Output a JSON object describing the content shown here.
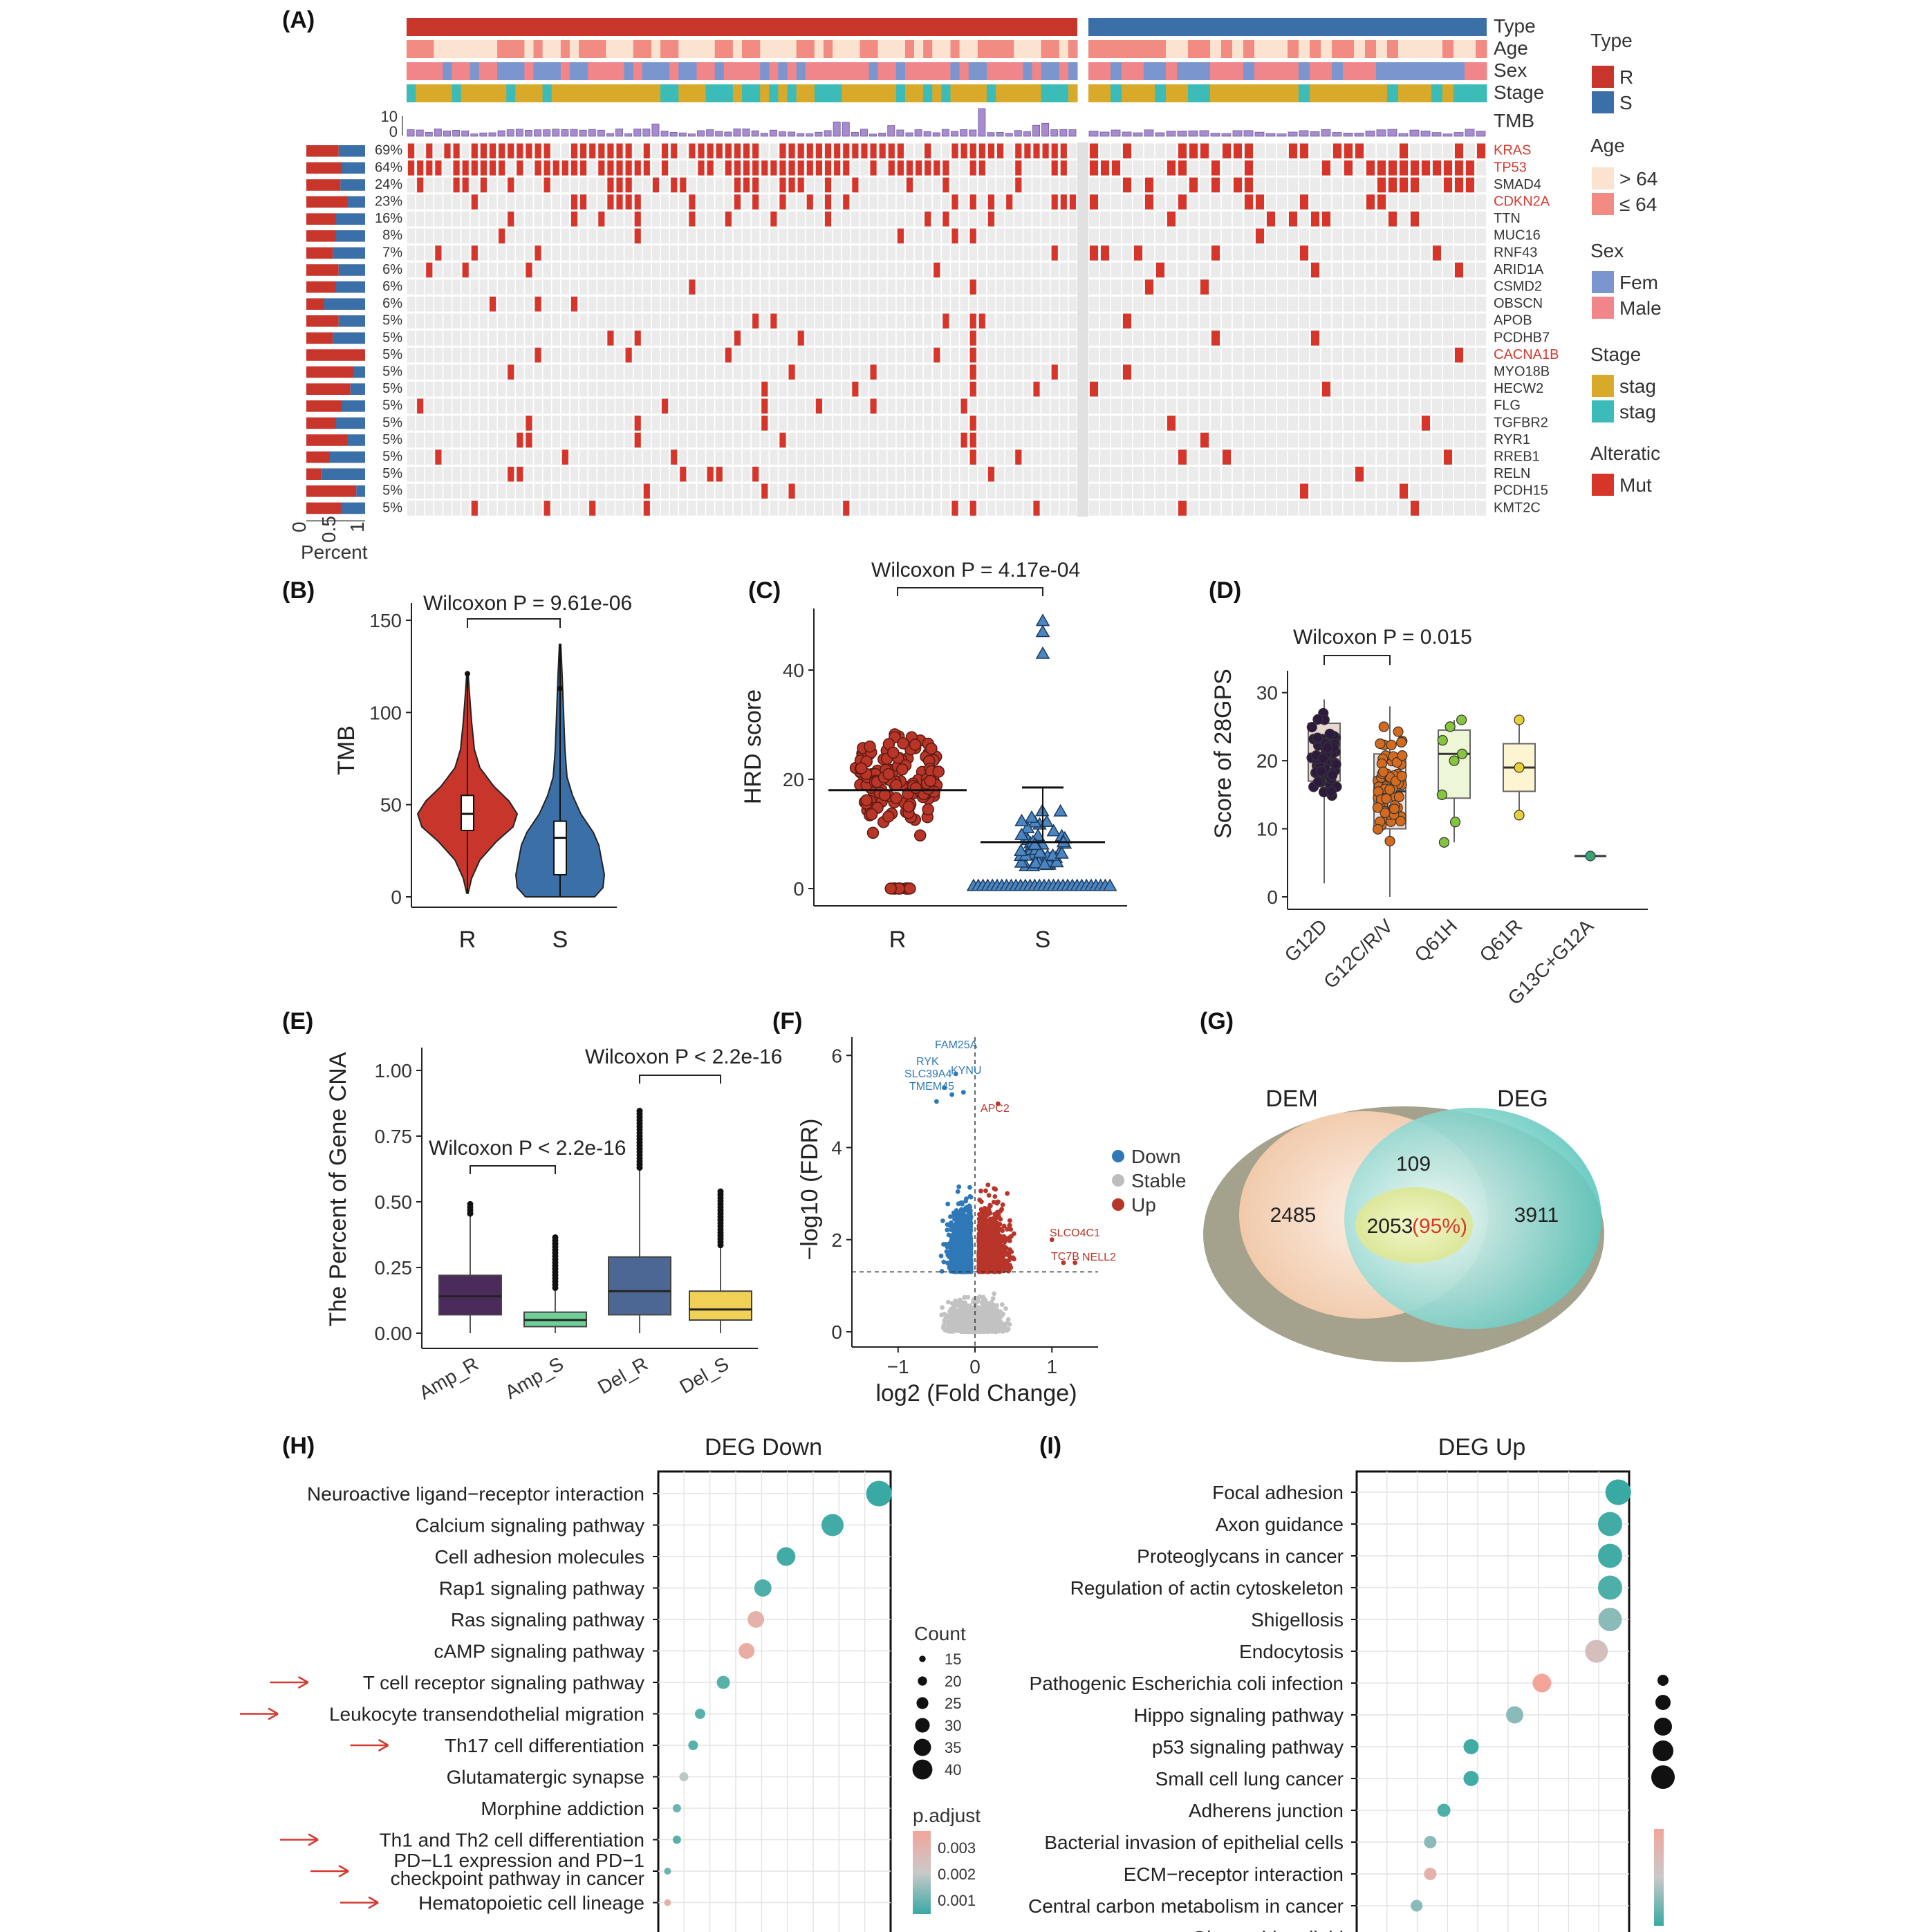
{
  "panels": {
    "A": "(A)",
    "B": "(B)",
    "C": "(C)",
    "D": "(D)",
    "E": "(E)",
    "F": "(F)",
    "G": "(G)",
    "H": "(H)",
    "I": "(I)"
  },
  "colors": {
    "R": "#c8352b",
    "S": "#3b6fa8",
    "age_gt": "#fbe3d0",
    "age_le": "#f28b82",
    "female": "#7b96cf",
    "male": "#f0858a",
    "stage_a": "#d9a929",
    "stage_b": "#3bbcb8",
    "mut": "#d8352a",
    "tmb": "#a78bd0",
    "grey": "#ebebeb"
  },
  "A": {
    "track_labels": [
      "Type",
      "Age",
      "Sex",
      "Stage",
      "TMB"
    ],
    "tmb_axis": [
      "10",
      "0"
    ],
    "genes": [
      {
        "name": "KRAS",
        "pct": "69%",
        "red": true,
        "frac": 0.55
      },
      {
        "name": "TP53",
        "pct": "64%",
        "red": true,
        "frac": 0.6
      },
      {
        "name": "SMAD4",
        "pct": "24%",
        "red": false,
        "frac": 0.58
      },
      {
        "name": "CDKN2A",
        "pct": "23%",
        "red": true,
        "frac": 0.7
      },
      {
        "name": "TTN",
        "pct": "16%",
        "red": false,
        "frac": 0.5
      },
      {
        "name": "MUC16",
        "pct": "8%",
        "red": false,
        "frac": 0.5
      },
      {
        "name": "RNF43",
        "pct": "7%",
        "red": false,
        "frac": 0.45
      },
      {
        "name": "ARID1A",
        "pct": "6%",
        "red": false,
        "frac": 0.55
      },
      {
        "name": "CSMD2",
        "pct": "6%",
        "red": false,
        "frac": 0.5
      },
      {
        "name": "OBSCN",
        "pct": "6%",
        "red": false,
        "frac": 0.3
      },
      {
        "name": "APOB",
        "pct": "5%",
        "red": false,
        "frac": 0.55
      },
      {
        "name": "PCDHB7",
        "pct": "5%",
        "red": false,
        "frac": 0.45
      },
      {
        "name": "CACNA1B",
        "pct": "5%",
        "red": true,
        "frac": 1.0
      },
      {
        "name": "MYO18B",
        "pct": "5%",
        "red": false,
        "frac": 0.8
      },
      {
        "name": "HECW2",
        "pct": "5%",
        "red": false,
        "frac": 0.75
      },
      {
        "name": "FLG",
        "pct": "5%",
        "red": false,
        "frac": 0.6
      },
      {
        "name": "TGFBR2",
        "pct": "5%",
        "red": false,
        "frac": 0.5
      },
      {
        "name": "RYR1",
        "pct": "5%",
        "red": false,
        "frac": 0.7
      },
      {
        "name": "RREB1",
        "pct": "5%",
        "red": false,
        "frac": 0.4
      },
      {
        "name": "RELN",
        "pct": "5%",
        "red": false,
        "frac": 0.25
      },
      {
        "name": "PCDH15",
        "pct": "5%",
        "red": false,
        "frac": 0.85
      },
      {
        "name": "KMT2C",
        "pct": "5%",
        "red": false,
        "frac": 0.6
      }
    ],
    "percent_axis": [
      "0",
      "0.5",
      "1"
    ],
    "percent_label": "Percent",
    "legend": {
      "type_title": "Type",
      "type_items": [
        "R",
        "S"
      ],
      "age_title": "Age",
      "age_items": [
        "> 64",
        "≤ 64"
      ],
      "sex_title": "Sex",
      "sex_items": [
        "Fem",
        "Male"
      ],
      "stage_title": "Stage",
      "stage_items": [
        "stag",
        "stag"
      ],
      "alt_title": "Alteratic",
      "alt_items": [
        "Mut"
      ]
    }
  },
  "chart_data": [
    {
      "panel": "B",
      "type": "violin",
      "ylabel": "TMB",
      "categories": [
        "R",
        "S"
      ],
      "yticks": [
        0,
        50,
        100,
        150
      ],
      "ylim": [
        0,
        150
      ],
      "summary": [
        {
          "name": "R",
          "median": 45,
          "q1": 36,
          "q3": 55,
          "min": 2,
          "max": 121
        },
        {
          "name": "S",
          "median": 32,
          "q1": 12,
          "q3": 41,
          "min": 0,
          "max": 137
        }
      ],
      "annotation": "Wilcoxon P = 9.61e-06"
    },
    {
      "panel": "C",
      "type": "scatter",
      "ylabel": "HRD score",
      "categories": [
        "R",
        "S"
      ],
      "yticks": [
        0,
        20,
        40
      ],
      "ylim": [
        0,
        50
      ],
      "medians": [
        18,
        8.5
      ],
      "upper_lines": [
        18,
        18.5
      ],
      "annotation": "Wilcoxon P = 4.17e-04"
    },
    {
      "panel": "D",
      "type": "box",
      "ylabel": "Score of 28GPS",
      "categories": [
        "G12D",
        "G12C/R/V",
        "Q61H",
        "Q61R",
        "G13C+G12A"
      ],
      "yticks": [
        0,
        10,
        20,
        30
      ],
      "ylim": [
        0,
        32
      ],
      "boxes": [
        {
          "q1": 17,
          "median": 21,
          "q3": 25.5,
          "min": 2,
          "max": 29
        },
        {
          "q1": 10,
          "median": 15.5,
          "q3": 21,
          "min": 0,
          "max": 28
        },
        {
          "q1": 14.5,
          "median": 21,
          "q3": 24.5,
          "min": 8,
          "max": 26
        },
        {
          "q1": 15.5,
          "median": 19,
          "q3": 22.5,
          "min": 12,
          "max": 26
        },
        {
          "q1": 6,
          "median": 6,
          "q3": 6,
          "min": 6,
          "max": 6
        }
      ],
      "annotation": "Wilcoxon P = 0.015"
    },
    {
      "panel": "E",
      "type": "box",
      "ylabel": "The Percent of Gene CNA",
      "categories": [
        "Amp_R",
        "Amp_S",
        "Del_R",
        "Del_S"
      ],
      "yticks": [
        "0.00",
        "0.25",
        "0.50",
        "0.75",
        "1.00"
      ],
      "ylim": [
        0,
        1
      ],
      "boxes": [
        {
          "q1": 0.07,
          "median": 0.14,
          "q3": 0.22,
          "min": 0,
          "max": 0.5
        },
        {
          "q1": 0.025,
          "median": 0.05,
          "q3": 0.08,
          "min": 0,
          "max": 0.37
        },
        {
          "q1": 0.07,
          "median": 0.16,
          "q3": 0.29,
          "min": 0,
          "max": 0.85
        },
        {
          "q1": 0.05,
          "median": 0.09,
          "q3": 0.16,
          "min": 0,
          "max": 0.55
        }
      ],
      "annotations": [
        "Wilcoxon P < 2.2e-16",
        "Wilcoxon P < 2.2e-16"
      ]
    },
    {
      "panel": "F",
      "type": "scatter",
      "xlabel": "log2 (Fold Change)",
      "ylabel": "−log10 (FDR)",
      "xticks": [
        "−1",
        "0",
        "1"
      ],
      "yticks": [
        "0",
        "2",
        "4",
        "6"
      ],
      "xlim": [
        -1.6,
        1.6
      ],
      "ylim": [
        0,
        6.2
      ],
      "legend": [
        "Down",
        "Stable",
        "Up"
      ],
      "labels_down": [
        "FAM25A",
        "RYK",
        "SLC39A4",
        "KYNU",
        "TMEM45"
      ],
      "labels_up": [
        "APC2",
        "SLCO4C1",
        "TC7B",
        "NELL2"
      ]
    },
    {
      "panel": "G",
      "type": "venn",
      "sets": [
        "DEM",
        "DEG"
      ],
      "values": {
        "dem_only": "2485",
        "deg_only": "3911",
        "overlap_outer": "109",
        "overlap_inner": "2053",
        "overlap_pct": "(95%)"
      }
    },
    {
      "panel": "H",
      "type": "dot",
      "title": "DEG Down",
      "pathways": [
        {
          "name": "Neuroactive ligand−receptor interaction",
          "x": 0.95,
          "count": 40,
          "padj": 0.0007,
          "arrow": false
        },
        {
          "name": "Calcium signaling pathway",
          "x": 0.75,
          "count": 35,
          "padj": 0.0008,
          "arrow": false
        },
        {
          "name": "Cell adhesion molecules",
          "x": 0.55,
          "count": 30,
          "padj": 0.0008,
          "arrow": false
        },
        {
          "name": "Rap1 signaling pathway",
          "x": 0.45,
          "count": 28,
          "padj": 0.0009,
          "arrow": false
        },
        {
          "name": "Ras signaling pathway",
          "x": 0.42,
          "count": 27,
          "padj": 0.003,
          "arrow": false
        },
        {
          "name": "cAMP signaling pathway",
          "x": 0.38,
          "count": 26,
          "padj": 0.0032,
          "arrow": false
        },
        {
          "name": "T cell receptor signaling pathway",
          "x": 0.28,
          "count": 22,
          "padj": 0.001,
          "arrow": true
        },
        {
          "name": "Leukocyte transendothelial migration",
          "x": 0.18,
          "count": 18,
          "padj": 0.001,
          "arrow": true
        },
        {
          "name": "Th17 cell differentiation",
          "x": 0.15,
          "count": 17,
          "padj": 0.001,
          "arrow": true
        },
        {
          "name": "Glutamatergic synapse",
          "x": 0.11,
          "count": 16,
          "padj": 0.002,
          "arrow": false
        },
        {
          "name": "Morphine addiction",
          "x": 0.08,
          "count": 15,
          "padj": 0.0012,
          "arrow": false
        },
        {
          "name": "Th1 and Th2 cell differentiation",
          "x": 0.08,
          "count": 15,
          "padj": 0.001,
          "arrow": true
        },
        {
          "name": "PD−L1 expression and PD−1 checkpoint pathway in cancer",
          "x": 0.04,
          "count": 13,
          "padj": 0.0012,
          "arrow": true
        },
        {
          "name": "Hematopoietic cell lineage",
          "x": 0.04,
          "count": 13,
          "padj": 0.003,
          "arrow": true
        }
      ],
      "legend_count_title": "Count",
      "legend_count": [
        "15",
        "20",
        "25",
        "30",
        "35",
        "40"
      ],
      "legend_padj_title": "p.adjust",
      "legend_padj": [
        "0.003",
        "0.002",
        "0.001"
      ]
    },
    {
      "panel": "I",
      "type": "dot",
      "title": "DEG Up",
      "pathways": [
        {
          "name": "Focal adhesion",
          "x": 0.96,
          "count": 40,
          "padj": 0.0007
        },
        {
          "name": "Axon guidance",
          "x": 0.93,
          "count": 38,
          "padj": 0.0008
        },
        {
          "name": "Proteoglycans in cancer",
          "x": 0.93,
          "count": 38,
          "padj": 0.0008
        },
        {
          "name": "Regulation of actin cytoskeleton",
          "x": 0.93,
          "count": 38,
          "padj": 0.0009
        },
        {
          "name": "Shigellosis",
          "x": 0.93,
          "count": 37,
          "padj": 0.0015
        },
        {
          "name": "Endocytosis",
          "x": 0.88,
          "count": 36,
          "padj": 0.0025
        },
        {
          "name": "Pathogenic Escherichia coli infection",
          "x": 0.68,
          "count": 30,
          "padj": 0.0035
        },
        {
          "name": "Hippo signaling pathway",
          "x": 0.58,
          "count": 28,
          "padj": 0.0015
        },
        {
          "name": "p53 signaling pathway",
          "x": 0.42,
          "count": 25,
          "padj": 0.0008
        },
        {
          "name": "Small cell lung cancer",
          "x": 0.42,
          "count": 25,
          "padj": 0.0008
        },
        {
          "name": "Adherens junction",
          "x": 0.32,
          "count": 22,
          "padj": 0.0009
        },
        {
          "name": "Bacterial invasion of epithelial cells",
          "x": 0.27,
          "count": 21,
          "padj": 0.0015
        },
        {
          "name": "ECM−receptor interaction",
          "x": 0.27,
          "count": 21,
          "padj": 0.003
        },
        {
          "name": "Central carbon metabolism in cancer",
          "x": 0.22,
          "count": 20,
          "padj": 0.0015
        },
        {
          "name": "Glycosphingolipid",
          "x": 0.05,
          "count": 15,
          "padj": 0.0008
        }
      ]
    }
  ]
}
